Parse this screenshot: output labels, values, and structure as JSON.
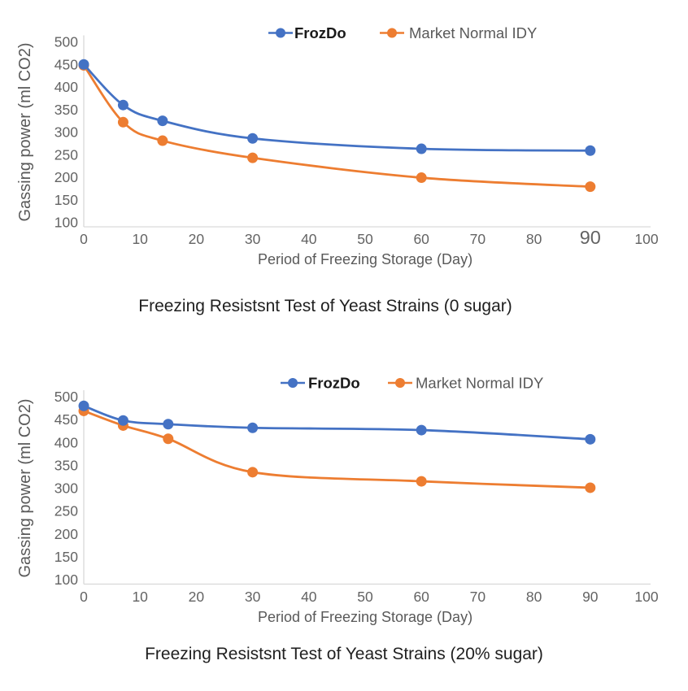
{
  "palette": {
    "series_blue": "#4472C4",
    "series_orange": "#ED7D31",
    "tick_label": "#636363",
    "axis_title": "#595959",
    "axis_line": "#D9D9D9",
    "chart_title": "#1F1F1F",
    "legend_bold_label": "#1A1A1A"
  },
  "chart_data": [
    {
      "type": "line",
      "title": "Freezing Resistsnt Test of Yeast Strains (0 sugar)",
      "xlabel": "Period of Freezing Storage (Day)",
      "ylabel": "Gassing power (ml CO2)",
      "xlim": [
        0,
        100
      ],
      "ylim": [
        100,
        500
      ],
      "x_ticks": [
        0,
        10,
        20,
        30,
        40,
        50,
        60,
        70,
        80,
        90,
        100
      ],
      "y_ticks": [
        100,
        150,
        200,
        250,
        300,
        350,
        400,
        450,
        500
      ],
      "oversized_x_tick": 90,
      "grid": false,
      "smooth": true,
      "marker": "circle",
      "legend_position": "top-center",
      "x": [
        0,
        7,
        14,
        30,
        60,
        90
      ],
      "series": [
        {
          "name": "FrozDo",
          "color": "#4472C4",
          "label_bold": true,
          "label_color": "#1A1A1A",
          "values": [
            450,
            360,
            325,
            286,
            263,
            259
          ]
        },
        {
          "name": "Market Normal IDY",
          "color": "#ED7D31",
          "label_bold": false,
          "label_color": "#595959",
          "values": [
            448,
            322,
            281,
            243,
            199,
            179
          ]
        }
      ]
    },
    {
      "type": "line",
      "title": "Freezing Resistsnt Test of Yeast Strains (20% sugar)",
      "xlabel": "Period of Freezing Storage (Day)",
      "ylabel": "Gassing power (ml CO2)",
      "xlim": [
        0,
        100
      ],
      "ylim": [
        100,
        500
      ],
      "x_ticks": [
        0,
        10,
        20,
        30,
        40,
        50,
        60,
        70,
        80,
        90,
        100
      ],
      "y_ticks": [
        100,
        150,
        200,
        250,
        300,
        350,
        400,
        450,
        500
      ],
      "oversized_x_tick": null,
      "grid": false,
      "smooth": true,
      "marker": "circle",
      "legend_position": "top-center",
      "x": [
        0,
        7,
        15,
        30,
        60,
        90
      ],
      "series": [
        {
          "name": "FrozDo",
          "color": "#4472C4",
          "label_bold": true,
          "label_color": "#1A1A1A",
          "values": [
            480,
            448,
            440,
            432,
            427,
            407
          ]
        },
        {
          "name": "Market Normal IDY",
          "color": "#ED7D31",
          "label_bold": false,
          "label_color": "#595959",
          "values": [
            469,
            437,
            408,
            335,
            315,
            301
          ]
        }
      ]
    }
  ]
}
